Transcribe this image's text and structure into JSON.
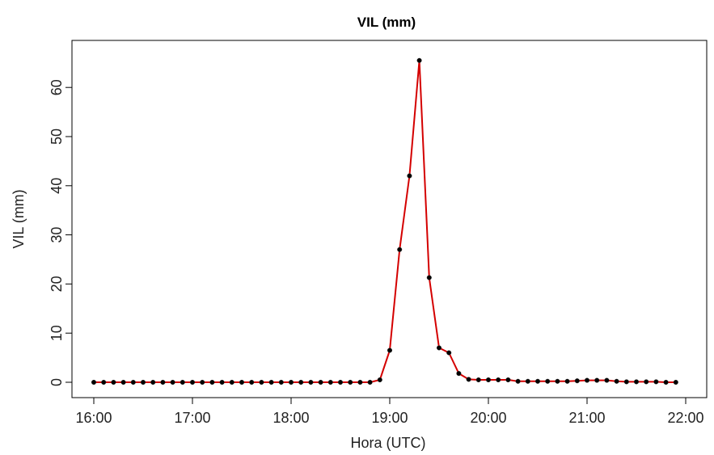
{
  "chart_data": {
    "type": "line",
    "title": "VIL (mm)",
    "xlabel": "Hora (UTC)",
    "ylabel": "VIL (mm)",
    "x_ticks": [
      "16:00",
      "17:00",
      "18:00",
      "19:00",
      "20:00",
      "21:00",
      "22:00"
    ],
    "y_ticks": [
      0,
      10,
      20,
      30,
      40,
      50,
      60
    ],
    "xlim": [
      "16:00",
      "22:00"
    ],
    "ylim": [
      0,
      65
    ],
    "grid": false,
    "legend": "none",
    "series": [
      {
        "color": "#d40000",
        "marker_color": "#000000",
        "x": [
          "16:00",
          "16:06",
          "16:12",
          "16:18",
          "16:24",
          "16:30",
          "16:36",
          "16:42",
          "16:48",
          "16:54",
          "17:00",
          "17:06",
          "17:12",
          "17:18",
          "17:24",
          "17:30",
          "17:36",
          "17:42",
          "17:48",
          "17:54",
          "18:00",
          "18:06",
          "18:12",
          "18:18",
          "18:24",
          "18:30",
          "18:36",
          "18:42",
          "18:48",
          "18:54",
          "19:00",
          "19:06",
          "19:12",
          "19:18",
          "19:24",
          "19:30",
          "19:36",
          "19:42",
          "19:48",
          "19:54",
          "20:00",
          "20:06",
          "20:12",
          "20:18",
          "20:24",
          "20:30",
          "20:36",
          "20:42",
          "20:48",
          "20:54",
          "21:00",
          "21:06",
          "21:12",
          "21:18",
          "21:24",
          "21:30",
          "21:36",
          "21:42",
          "21:48",
          "21:54"
        ],
        "values": [
          0,
          0,
          0,
          0,
          0,
          0,
          0,
          0,
          0,
          0,
          0,
          0,
          0,
          0,
          0,
          0,
          0,
          0,
          0,
          0,
          0,
          0,
          0,
          0,
          0,
          0,
          0,
          0,
          0,
          0.5,
          6.5,
          27,
          42,
          65.5,
          21.3,
          7,
          6,
          1.8,
          0.6,
          0.5,
          0.5,
          0.5,
          0.5,
          0.2,
          0.2,
          0.2,
          0.2,
          0.2,
          0.2,
          0.3,
          0.4,
          0.4,
          0.4,
          0.2,
          0.1,
          0.1,
          0.1,
          0.1,
          0,
          0
        ]
      }
    ]
  }
}
